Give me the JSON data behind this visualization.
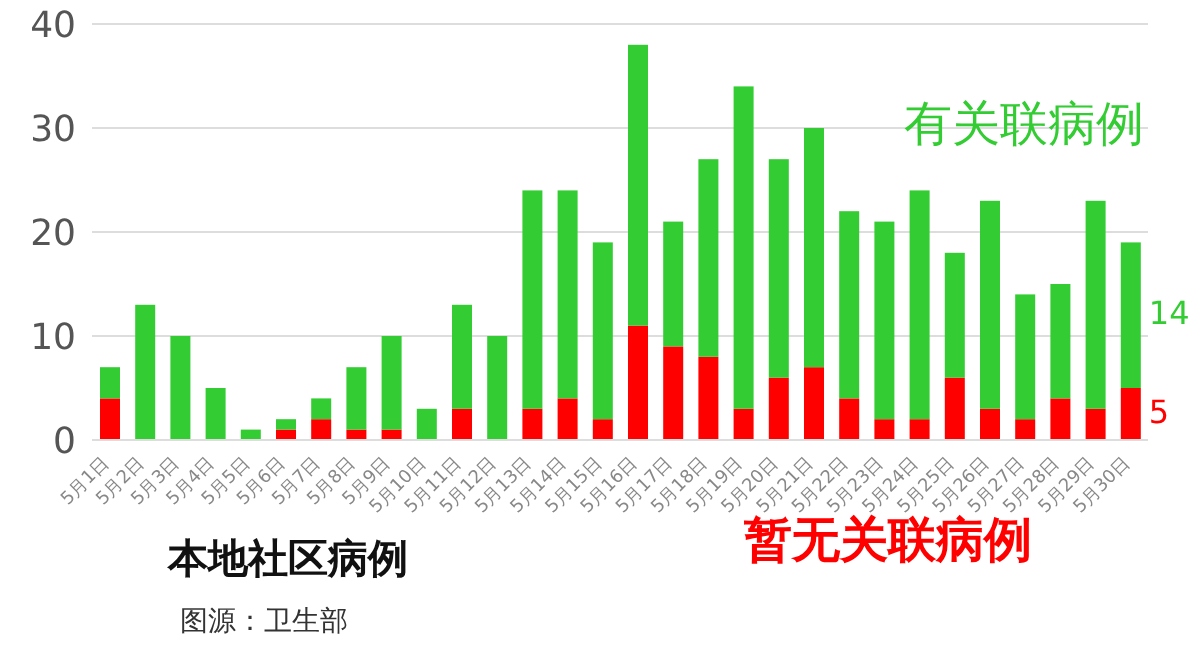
{
  "chart_data": {
    "type": "bar",
    "title": "本地社区病例",
    "annotations": [
      "图源：卫生部"
    ],
    "categories": [
      "5月1日",
      "5月2日",
      "5月3日",
      "5月4日",
      "5月5日",
      "5月6日",
      "5月7日",
      "5月8日",
      "5月9日",
      "5月10日",
      "5月11日",
      "5月12日",
      "5月13日",
      "5月14日",
      "5月15日",
      "5月16日",
      "5月17日",
      "5月18日",
      "5月19日",
      "5月20日",
      "5月21日",
      "5月22日",
      "5月23日",
      "5月24日",
      "5月25日",
      "5月26日",
      "5月27日",
      "5月28日",
      "5月29日",
      "5月30日"
    ],
    "series": [
      {
        "name": "暂无关联病例",
        "color": "#ff0000",
        "values": [
          4,
          0,
          0,
          0,
          0,
          1,
          2,
          1,
          1,
          0,
          3,
          0,
          3,
          4,
          2,
          11,
          9,
          8,
          3,
          6,
          7,
          4,
          2,
          2,
          6,
          3,
          2,
          4,
          3,
          5
        ],
        "value_labels": [
          null,
          null,
          null,
          null,
          null,
          null,
          null,
          null,
          null,
          null,
          null,
          null,
          null,
          null,
          null,
          null,
          null,
          null,
          null,
          null,
          null,
          null,
          null,
          null,
          null,
          null,
          null,
          null,
          null,
          "5"
        ]
      },
      {
        "name": "有关联病例",
        "color": "#33cc33",
        "values": [
          3,
          13,
          10,
          5,
          1,
          1,
          2,
          6,
          9,
          3,
          10,
          10,
          21,
          20,
          17,
          27,
          12,
          19,
          31,
          21,
          23,
          18,
          19,
          22,
          12,
          20,
          12,
          11,
          20,
          14
        ],
        "value_labels": [
          null,
          null,
          null,
          null,
          null,
          null,
          null,
          null,
          null,
          null,
          null,
          null,
          null,
          null,
          null,
          null,
          null,
          null,
          null,
          null,
          null,
          null,
          null,
          null,
          null,
          null,
          null,
          null,
          null,
          "14"
        ]
      }
    ],
    "stacked": true,
    "ylim": [
      0,
      40
    ],
    "yticks": [
      0,
      10,
      20,
      30,
      40
    ],
    "grid": "y"
  }
}
